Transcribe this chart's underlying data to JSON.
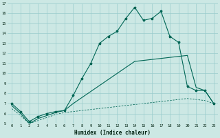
{
  "xlabel": "Humidex (Indice chaleur)",
  "background_color": "#cce8e4",
  "grid_color": "#99cccc",
  "line_color": "#006655",
  "xlim": [
    -0.5,
    23.5
  ],
  "ylim": [
    5,
    17
  ],
  "xticks": [
    0,
    1,
    2,
    3,
    4,
    5,
    6,
    7,
    8,
    9,
    10,
    11,
    12,
    13,
    14,
    15,
    16,
    17,
    18,
    19,
    20,
    21,
    22,
    23
  ],
  "yticks": [
    5,
    6,
    7,
    8,
    9,
    10,
    11,
    12,
    13,
    14,
    15,
    16,
    17
  ],
  "series1_x": [
    0,
    1,
    2,
    3,
    4,
    5,
    6,
    7,
    8,
    9,
    10,
    11,
    12,
    13,
    14,
    15,
    16,
    17,
    18,
    19,
    20,
    21,
    22,
    23
  ],
  "series1_y": [
    7.0,
    6.2,
    5.2,
    5.7,
    6.0,
    6.2,
    6.3,
    7.8,
    9.5,
    11.0,
    13.0,
    13.7,
    14.2,
    15.5,
    16.6,
    15.3,
    15.5,
    16.2,
    13.7,
    13.1,
    8.7,
    8.3,
    8.3,
    7.0
  ],
  "series2_x": [
    0,
    1,
    2,
    3,
    4,
    5,
    6,
    7,
    8,
    9,
    10,
    11,
    12,
    13,
    14,
    15,
    16,
    17,
    18,
    19,
    20,
    21,
    22,
    23
  ],
  "series2_y": [
    6.8,
    6.0,
    5.0,
    5.5,
    5.8,
    6.1,
    6.3,
    7.0,
    7.6,
    8.2,
    8.8,
    9.4,
    10.0,
    10.6,
    11.2,
    11.3,
    11.4,
    11.5,
    11.6,
    11.7,
    11.8,
    8.6,
    8.3,
    7.0
  ],
  "series3_x": [
    0,
    1,
    2,
    3,
    4,
    5,
    6,
    7,
    8,
    9,
    10,
    11,
    12,
    13,
    14,
    15,
    16,
    17,
    18,
    19,
    20,
    21,
    22,
    23
  ],
  "series3_y": [
    6.5,
    5.8,
    5.0,
    5.3,
    5.6,
    5.9,
    6.1,
    6.2,
    6.3,
    6.4,
    6.5,
    6.6,
    6.7,
    6.8,
    6.9,
    7.0,
    7.1,
    7.2,
    7.3,
    7.4,
    7.5,
    7.4,
    7.3,
    7.0
  ]
}
